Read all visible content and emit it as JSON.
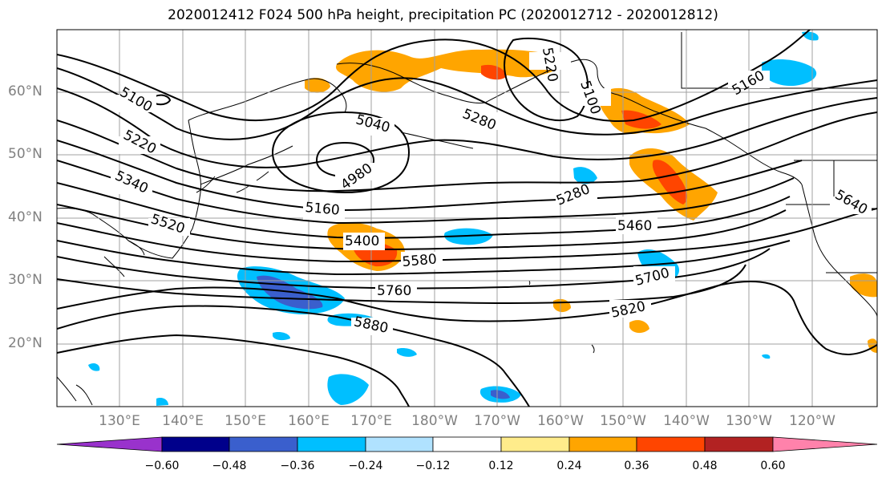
{
  "title": "2020012412 F024 500 hPa height, precipitation PC (2020012712 - 2020012812)",
  "lat_labels": [
    "60°N",
    "50°N",
    "40°N",
    "30°N",
    "20°N"
  ],
  "lon_labels": [
    "130°E",
    "140°E",
    "150°E",
    "160°E",
    "170°E",
    "180°W",
    "170°W",
    "160°W",
    "150°W",
    "140°W",
    "130°W",
    "120°W"
  ],
  "contour_labels": [
    "5100",
    "5220",
    "5340",
    "5520",
    "5160",
    "5040",
    "4980",
    "5400",
    "5580",
    "5760",
    "5880",
    "5280",
    "5280",
    "5460",
    "5700",
    "5820",
    "5160",
    "5100",
    "5220",
    "5640"
  ],
  "colorbar": {
    "ticks": [
      "−0.60",
      "−0.48",
      "−0.36",
      "−0.24",
      "−0.12",
      "0.12",
      "0.24",
      "0.36",
      "0.48",
      "0.60"
    ],
    "colors": [
      "#9932cc",
      "#00008b",
      "#3a5fcd",
      "#00bfff",
      "#b0e2ff",
      "#ffffff",
      "#ffec8b",
      "#ffa500",
      "#ff4500",
      "#b22222",
      "#ff82ab"
    ]
  },
  "colors": {
    "contour": "#000000",
    "grid": "#a0a0a0",
    "axis_label": "#808080"
  }
}
